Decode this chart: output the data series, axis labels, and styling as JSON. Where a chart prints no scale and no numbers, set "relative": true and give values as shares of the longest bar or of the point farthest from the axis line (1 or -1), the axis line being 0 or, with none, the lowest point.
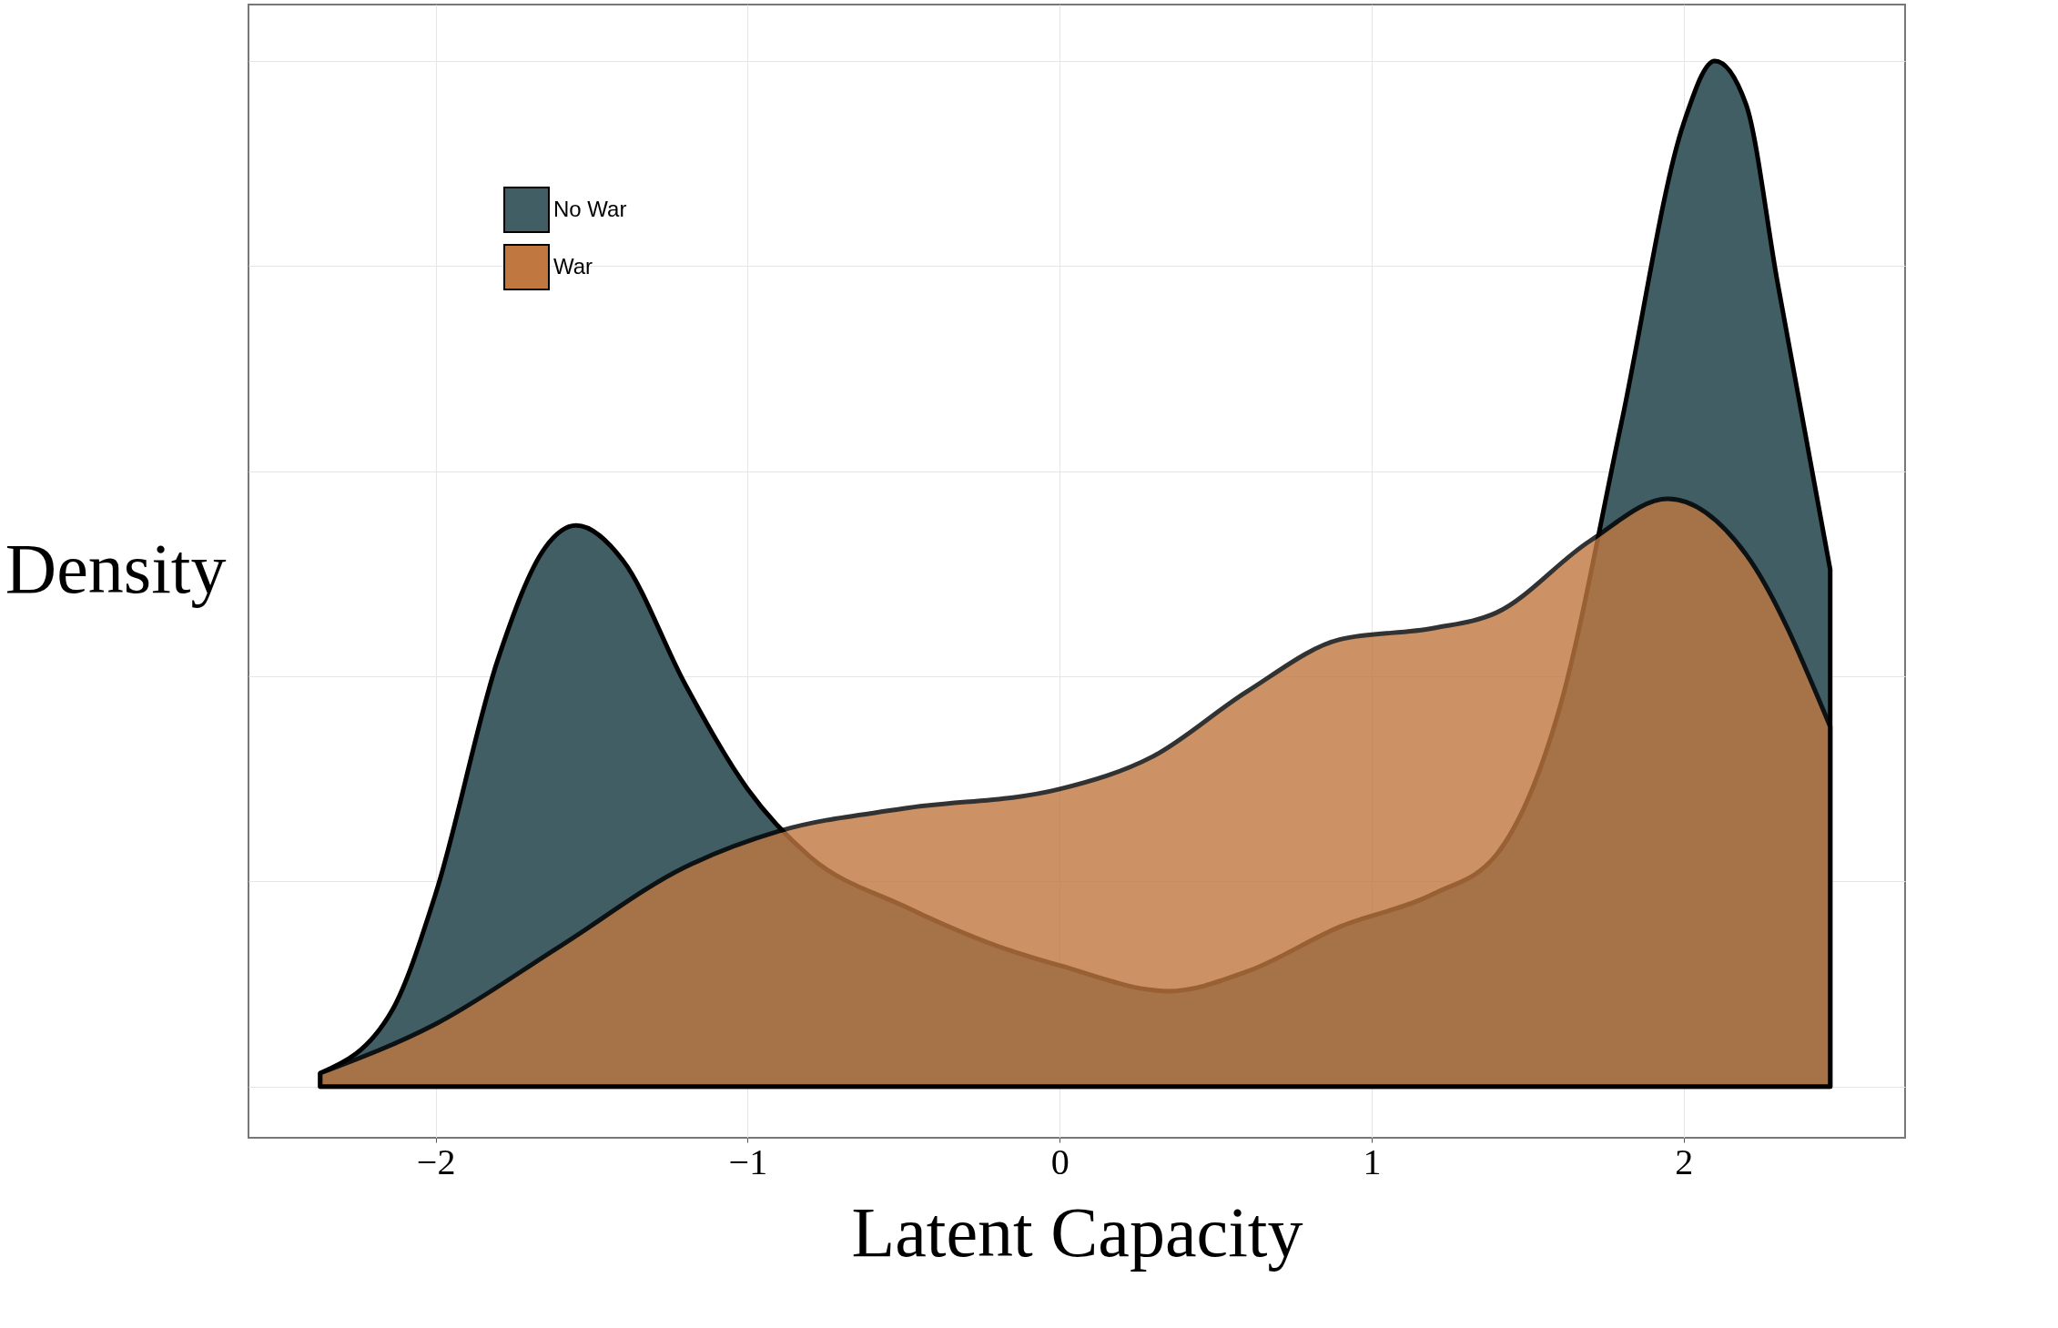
{
  "chart_data": {
    "type": "area",
    "relative": true,
    "xlabel": "Latent Capacity",
    "ylabel": "Density",
    "xlim": [
      -2.6,
      2.71
    ],
    "xticks": [
      -2,
      -1,
      0,
      1,
      2
    ],
    "grid": true,
    "legend": "top left",
    "series": [
      {
        "name": "No War",
        "color": "#415e65",
        "x": [
          -2.37,
          -2.14,
          -2.0,
          -1.8,
          -1.65,
          -1.55,
          -1.4,
          -1.2,
          -1.0,
          -0.8,
          -0.5,
          -0.2,
          0,
          0.35,
          0.6,
          0.9,
          1.2,
          1.4,
          1.6,
          1.8,
          2.0,
          2.1,
          2.2,
          2.3,
          2.47
        ],
        "values": [
          0.013,
          0.074,
          0.188,
          0.417,
          0.525,
          0.547,
          0.513,
          0.392,
          0.29,
          0.224,
          0.176,
          0.137,
          0.118,
          0.093,
          0.112,
          0.156,
          0.188,
          0.226,
          0.366,
          0.646,
          0.939,
          1.0,
          0.958,
          0.786,
          0.504
        ]
      },
      {
        "name": "War",
        "color": "#c07840",
        "x": [
          -2.37,
          -2.0,
          -1.6,
          -1.2,
          -0.9,
          -0.5,
          0,
          0.3,
          0.6,
          0.9,
          1.2,
          1.4,
          1.7,
          1.95,
          2.2,
          2.47
        ],
        "values": [
          0.013,
          0.061,
          0.137,
          0.214,
          0.249,
          0.271,
          0.29,
          0.322,
          0.385,
          0.436,
          0.447,
          0.462,
          0.532,
          0.573,
          0.519,
          0.351
        ]
      }
    ]
  }
}
